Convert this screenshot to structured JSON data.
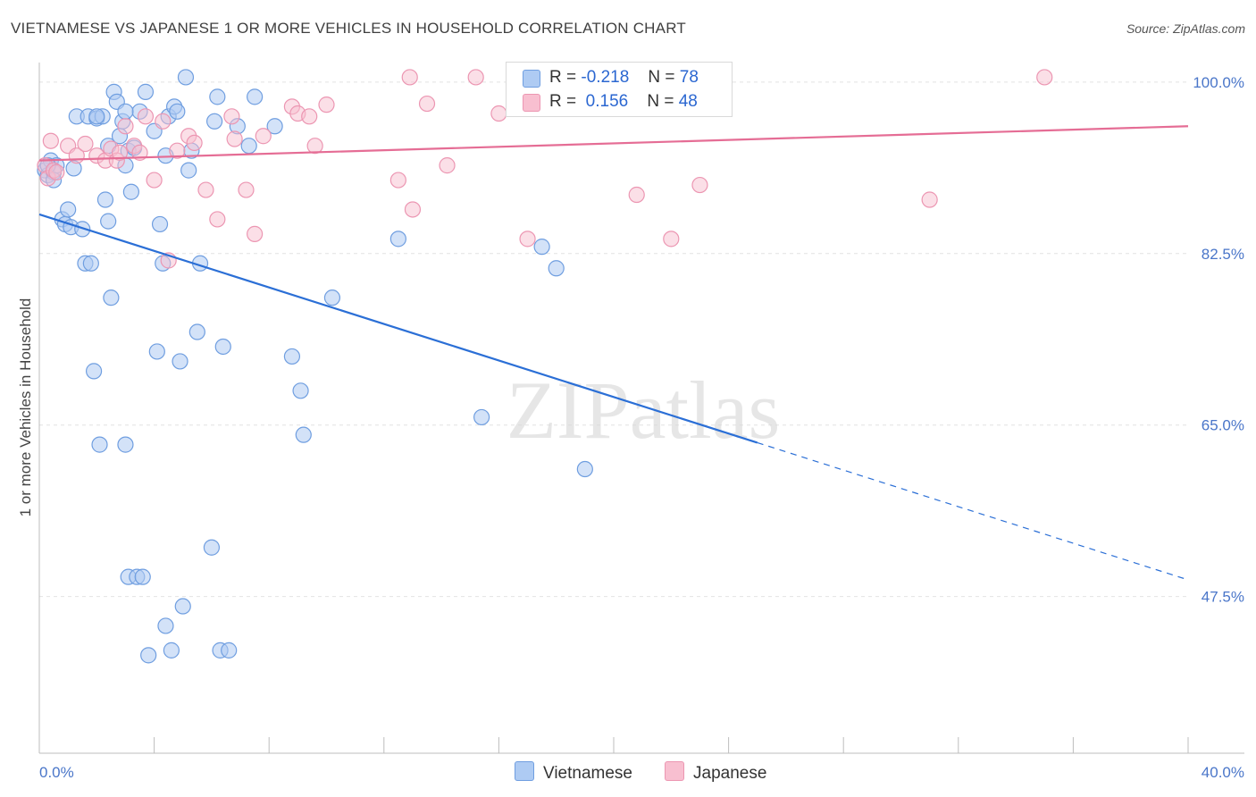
{
  "title": "VIETNAMESE VS JAPANESE 1 OR MORE VEHICLES IN HOUSEHOLD CORRELATION CHART",
  "source": "Source: ZipAtlas.com",
  "watermark": "ZIPatlas",
  "legend": {
    "rows": [
      {
        "r_label": "R =",
        "r_value": "-0.218",
        "n_label": "N =",
        "n_value": "78"
      },
      {
        "r_label": "R =",
        "r_value": "0.156",
        "n_label": "N =",
        "n_value": "48"
      }
    ]
  },
  "bottom_legend": [
    "Vietnamese",
    "Japanese"
  ],
  "colors": {
    "vietnamese_fill": "#aecbf3",
    "vietnamese_stroke": "#6f9ee0",
    "vietnamese_line": "#2b6fd6",
    "japanese_fill": "#f8bfd0",
    "japanese_stroke": "#ec96b2",
    "japanese_line": "#e56d95",
    "tick_text": "#4a76c9",
    "grid": "#e2e2e2"
  },
  "chart_data": {
    "type": "scatter",
    "title": "VIETNAMESE VS JAPANESE 1 OR MORE VEHICLES IN HOUSEHOLD CORRELATION CHART",
    "xlabel": "",
    "ylabel": "1 or more Vehicles in Household",
    "xlim": [
      0,
      40
    ],
    "ylim": [
      31.5,
      102
    ],
    "x_tick_labels": [
      "0.0%",
      "40.0%"
    ],
    "y_ticks": [
      47.5,
      65.0,
      82.5,
      100.0
    ],
    "y_tick_labels": [
      "47.5%",
      "65.0%",
      "82.5%",
      "100.0%"
    ],
    "series": [
      {
        "name": "Vietnamese",
        "r": -0.218,
        "n": 78,
        "trend": {
          "x0": 0.0,
          "y0": 86.5,
          "x1": 25.0,
          "y1": 63.2,
          "dash_x1": 40.0,
          "dash_y1": 49.2
        },
        "points": [
          [
            0.2,
            91.0
          ],
          [
            0.3,
            90.5
          ],
          [
            0.4,
            92.0
          ],
          [
            0.5,
            90.8
          ],
          [
            0.6,
            91.5
          ],
          [
            0.8,
            86.0
          ],
          [
            0.9,
            85.5
          ],
          [
            1.0,
            87.0
          ],
          [
            1.1,
            85.2
          ],
          [
            1.2,
            91.2
          ],
          [
            1.3,
            96.5
          ],
          [
            1.5,
            85.0
          ],
          [
            1.6,
            81.5
          ],
          [
            1.7,
            96.5
          ],
          [
            1.8,
            81.5
          ],
          [
            1.9,
            70.5
          ],
          [
            2.0,
            96.3
          ],
          [
            2.1,
            63.0
          ],
          [
            2.2,
            96.5
          ],
          [
            2.3,
            88.0
          ],
          [
            2.4,
            85.8
          ],
          [
            2.4,
            93.5
          ],
          [
            2.5,
            78.0
          ],
          [
            2.6,
            99.0
          ],
          [
            2.7,
            98.0
          ],
          [
            2.8,
            94.5
          ],
          [
            2.9,
            96.0
          ],
          [
            3.0,
            91.5
          ],
          [
            3.0,
            63.0
          ],
          [
            3.1,
            49.5
          ],
          [
            3.1,
            93.0
          ],
          [
            3.2,
            88.8
          ],
          [
            3.3,
            93.3
          ],
          [
            3.4,
            49.5
          ],
          [
            3.5,
            97.0
          ],
          [
            3.6,
            49.5
          ],
          [
            3.7,
            99.0
          ],
          [
            3.8,
            41.5
          ],
          [
            4.0,
            95.0
          ],
          [
            4.1,
            72.5
          ],
          [
            4.2,
            85.5
          ],
          [
            4.3,
            81.5
          ],
          [
            4.4,
            92.5
          ],
          [
            4.4,
            44.5
          ],
          [
            4.5,
            96.5
          ],
          [
            4.6,
            42.0
          ],
          [
            4.7,
            97.5
          ],
          [
            4.8,
            97.0
          ],
          [
            4.9,
            71.5
          ],
          [
            5.0,
            46.5
          ],
          [
            5.1,
            100.5
          ],
          [
            5.2,
            91.0
          ],
          [
            5.3,
            93.0
          ],
          [
            5.5,
            74.5
          ],
          [
            5.6,
            81.5
          ],
          [
            6.0,
            52.5
          ],
          [
            6.1,
            96.0
          ],
          [
            6.2,
            98.5
          ],
          [
            6.3,
            42.0
          ],
          [
            6.4,
            73.0
          ],
          [
            6.6,
            42.0
          ],
          [
            6.9,
            95.5
          ],
          [
            7.3,
            93.5
          ],
          [
            7.5,
            98.5
          ],
          [
            8.2,
            95.5
          ],
          [
            8.8,
            72.0
          ],
          [
            9.1,
            68.5
          ],
          [
            9.2,
            64.0
          ],
          [
            10.2,
            78.0
          ],
          [
            12.5,
            84.0
          ],
          [
            15.4,
            65.8
          ],
          [
            17.5,
            83.2
          ],
          [
            18.0,
            81.0
          ],
          [
            19.0,
            60.5
          ],
          [
            0.3,
            91.5
          ],
          [
            0.5,
            90.0
          ],
          [
            3.0,
            97.0
          ],
          [
            2.0,
            96.5
          ]
        ]
      },
      {
        "name": "Japanese",
        "r": 0.156,
        "n": 48,
        "trend": {
          "x0": 0.0,
          "y0": 92.0,
          "x1": 40.0,
          "y1": 95.5
        },
        "points": [
          [
            0.2,
            91.5
          ],
          [
            0.3,
            90.2
          ],
          [
            0.4,
            94.0
          ],
          [
            0.5,
            91.0
          ],
          [
            0.6,
            90.8
          ],
          [
            1.0,
            93.5
          ],
          [
            1.3,
            92.5
          ],
          [
            1.6,
            93.7
          ],
          [
            2.0,
            92.5
          ],
          [
            2.3,
            92.0
          ],
          [
            2.5,
            93.2
          ],
          [
            2.7,
            92.0
          ],
          [
            2.8,
            92.8
          ],
          [
            3.0,
            95.5
          ],
          [
            3.3,
            93.5
          ],
          [
            3.5,
            92.8
          ],
          [
            3.7,
            96.5
          ],
          [
            4.0,
            90.0
          ],
          [
            4.3,
            96.0
          ],
          [
            4.5,
            81.8
          ],
          [
            4.8,
            93.0
          ],
          [
            5.2,
            94.5
          ],
          [
            5.4,
            93.8
          ],
          [
            5.8,
            89.0
          ],
          [
            6.2,
            86.0
          ],
          [
            6.7,
            96.5
          ],
          [
            6.8,
            94.2
          ],
          [
            7.2,
            89.0
          ],
          [
            7.5,
            84.5
          ],
          [
            7.8,
            94.5
          ],
          [
            8.8,
            97.5
          ],
          [
            9.0,
            96.8
          ],
          [
            9.4,
            96.5
          ],
          [
            9.6,
            93.5
          ],
          [
            10.0,
            97.7
          ],
          [
            12.5,
            90.0
          ],
          [
            12.9,
            100.5
          ],
          [
            13.0,
            87.0
          ],
          [
            13.5,
            97.8
          ],
          [
            14.2,
            91.5
          ],
          [
            15.2,
            100.5
          ],
          [
            16.0,
            96.8
          ],
          [
            17.0,
            84.0
          ],
          [
            20.8,
            88.5
          ],
          [
            22.0,
            84.0
          ],
          [
            23.0,
            89.5
          ],
          [
            31.0,
            88.0
          ],
          [
            35.0,
            100.5
          ]
        ]
      }
    ]
  }
}
